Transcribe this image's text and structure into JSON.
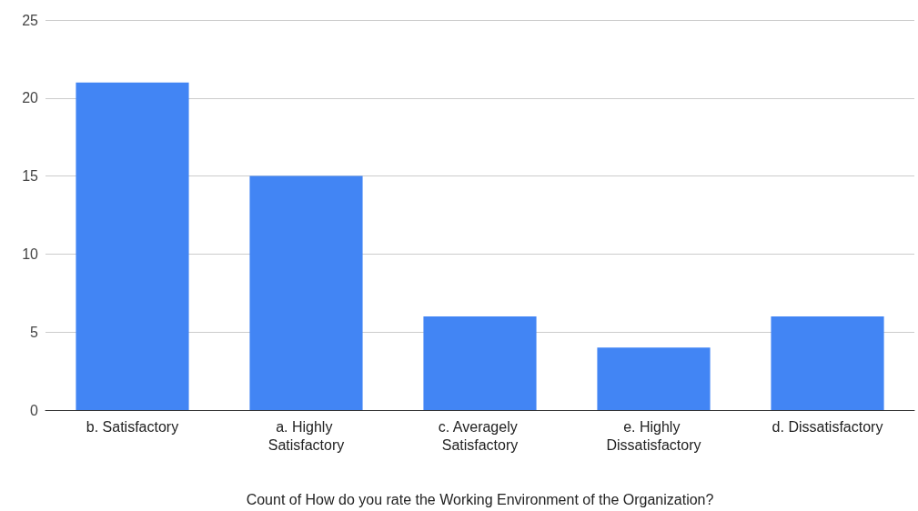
{
  "chart_data": {
    "type": "bar",
    "xlabel": "Count of How do you rate the Working Environment of the Organization?",
    "categories": [
      "b. Satisfactory",
      "a. Highly Satisfactory",
      "c. Averagely Satisfactory",
      "e. Highly Dissatisfactory",
      "d. Dissatisfactory"
    ],
    "values": [
      21,
      15,
      6,
      4,
      6
    ],
    "color": "#4285f4",
    "ylim": [
      0,
      25
    ],
    "yticks": [
      0,
      5,
      10,
      15,
      20,
      25
    ],
    "grid": "y"
  }
}
